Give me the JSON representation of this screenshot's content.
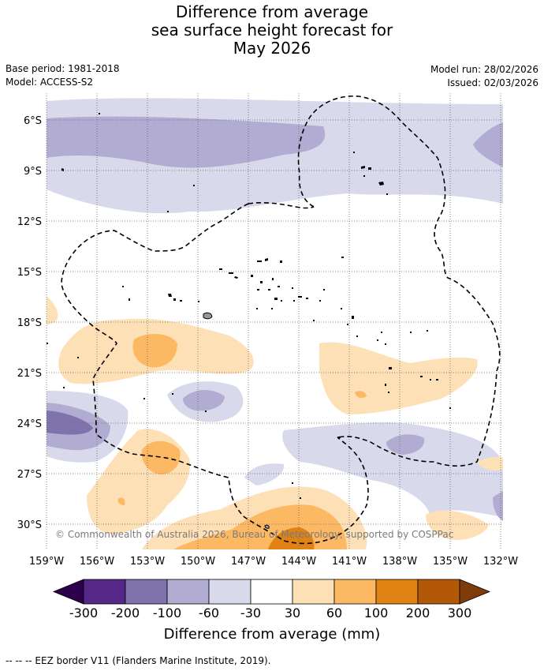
{
  "title": {
    "line1": "Difference from average",
    "line2": "sea surface height forecast for",
    "line3": "May 2026"
  },
  "meta": {
    "base_period": "Base period: 1981-2018",
    "model": "Model: ACCESS-S2",
    "model_run": "Model run: 28/02/2026",
    "issued": "Issued: 02/03/2026"
  },
  "axes": {
    "lon_labels": [
      "159°W",
      "156°W",
      "153°W",
      "150°W",
      "147°W",
      "144°W",
      "141°W",
      "138°W",
      "135°W",
      "132°W"
    ],
    "lat_labels": [
      "6°S",
      "9°S",
      "12°S",
      "15°S",
      "18°S",
      "21°S",
      "24°S",
      "27°S",
      "30°S"
    ]
  },
  "colorbar": {
    "title": "Difference from average (mm)",
    "tick_labels": [
      "-300",
      "-200",
      "-100",
      "-60",
      "-30",
      "30",
      "60",
      "100",
      "200",
      "300"
    ],
    "colors": {
      "below_min": "#2d004b",
      "n300_200": "#542788",
      "n200_100": "#8073ac",
      "n100_60": "#b2abd2",
      "n60_30": "#d8daeb",
      "n30_30": "#ffffff",
      "p30_60": "#fee0b6",
      "p60_100": "#fdb863",
      "p100_200": "#e08214",
      "p200_300": "#b35806",
      "above_max": "#7f3b08"
    }
  },
  "copyright": "© Commonwealth of Australia 2026, Bureau of Meteorology, supported by COSPPac",
  "legend": "-- -- -- EEZ border V11 (Flanders Marine Institute, 2019)."
}
